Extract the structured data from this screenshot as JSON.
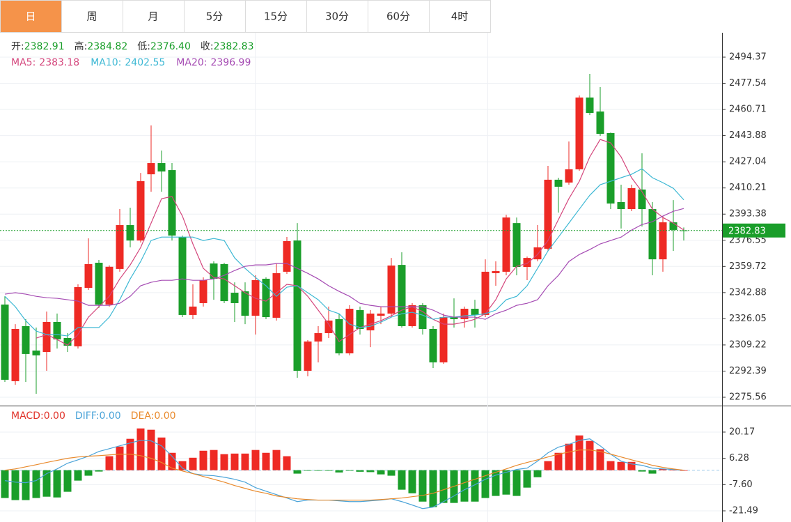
{
  "tabs": {
    "items": [
      "日",
      "周",
      "月",
      "5分",
      "15分",
      "30分",
      "60分",
      "4时"
    ],
    "active": 0
  },
  "readout": [
    {
      "label": "开:",
      "value": "2382.91"
    },
    {
      "label": "高:",
      "value": "2384.82"
    },
    {
      "label": "低:",
      "value": "2376.40"
    },
    {
      "label": "收:",
      "value": "2382.83"
    }
  ],
  "chart_data": [
    {
      "type": "candlestick",
      "up_color": "#ee2a24",
      "down_color": "#1a9e2a",
      "ylim": [
        2270.18,
        2510.06
      ],
      "yticks": [
        2494.37,
        2477.54,
        2460.71,
        2443.88,
        2427.04,
        2410.21,
        2393.38,
        2376.55,
        2359.72,
        2342.88,
        2326.05,
        2309.22,
        2292.39,
        2275.56
      ],
      "grid": true,
      "open": [
        2335.2,
        2285.9,
        2321.3,
        2305.6,
        2304.7,
        2324.0,
        2313.7,
        2308.3,
        2345.9,
        2362.1,
        2335.2,
        2358.1,
        2386.3,
        2376.4,
        2419.0,
        2426.2,
        2421.7,
        2378.7,
        2328.5,
        2336.1,
        2361.6,
        2361.2,
        2342.8,
        2343.7,
        2328.0,
        2351.8,
        2326.7,
        2356.3,
        2376.4,
        2292.6,
        2311.4,
        2316.8,
        2325.8,
        2303.8,
        2331.6,
        2318.6,
        2328.0,
        2329.4,
        2360.7,
        2321.3,
        2334.8,
        2319.5,
        2298.0,
        2327.1,
        2325.8,
        2332.5,
        2328.5,
        2355.4,
        2356.3,
        2387.6,
        2359.4,
        2364.3,
        2371.1,
        2415.5,
        2413.7,
        2422.2,
        2468.4,
        2459.4,
        2445.5,
        2401.1,
        2396.6,
        2409.2,
        2396.6,
        2364.3,
        2388.1,
        2382.91
      ],
      "high": [
        2340.6,
        2322.6,
        2325.8,
        2320.4,
        2330.7,
        2329.4,
        2316.8,
        2348.2,
        2377.8,
        2363.9,
        2360.4,
        2396.6,
        2397.5,
        2419.9,
        2450.4,
        2434.3,
        2426.2,
        2379.6,
        2348.2,
        2352.7,
        2363.0,
        2362.1,
        2349.5,
        2349.5,
        2354.0,
        2352.7,
        2361.6,
        2378.7,
        2387.6,
        2312.3,
        2321.3,
        2333.9,
        2329.4,
        2334.8,
        2333.9,
        2331.6,
        2333.9,
        2365.2,
        2368.8,
        2336.1,
        2336.1,
        2321.3,
        2329.4,
        2339.2,
        2333.9,
        2338.3,
        2364.3,
        2363.0,
        2393.0,
        2391.2,
        2366.1,
        2386.3,
        2424.4,
        2416.8,
        2440.1,
        2469.7,
        2483.6,
        2475.1,
        2445.9,
        2412.3,
        2412.3,
        2432.5,
        2401.1,
        2392.1,
        2402.4,
        2384.82
      ],
      "low": [
        2285.4,
        2283.6,
        2285.4,
        2277.8,
        2292.6,
        2306.9,
        2304.7,
        2306.9,
        2344.6,
        2333.0,
        2333.9,
        2356.3,
        2372.0,
        2375.1,
        2407.8,
        2407.8,
        2376.4,
        2327.1,
        2325.8,
        2333.9,
        2338.3,
        2336.1,
        2324.0,
        2322.6,
        2315.9,
        2325.8,
        2324.9,
        2354.9,
        2288.1,
        2289.0,
        2298.0,
        2313.7,
        2302.5,
        2302.5,
        2315.9,
        2307.8,
        2322.6,
        2327.1,
        2320.4,
        2320.4,
        2315.9,
        2294.4,
        2297.1,
        2320.4,
        2320.4,
        2320.4,
        2327.1,
        2347.3,
        2354.0,
        2354.0,
        2350.9,
        2363.0,
        2369.7,
        2394.4,
        2412.3,
        2421.3,
        2457.1,
        2443.7,
        2396.6,
        2384.1,
        2395.3,
        2385.4,
        2354.0,
        2356.3,
        2369.7,
        2376.4
      ],
      "close": [
        2286.8,
        2319.5,
        2303.4,
        2302.5,
        2324.0,
        2312.8,
        2308.7,
        2346.4,
        2361.2,
        2335.2,
        2359.5,
        2386.3,
        2376.4,
        2414.6,
        2426.2,
        2420.8,
        2379.6,
        2328.5,
        2333.9,
        2350.9,
        2351.8,
        2337.4,
        2336.1,
        2328.0,
        2350.9,
        2327.1,
        2355.4,
        2376.0,
        2292.6,
        2311.4,
        2316.8,
        2324.9,
        2303.8,
        2332.5,
        2319.5,
        2329.4,
        2329.4,
        2360.3,
        2321.3,
        2334.8,
        2319.5,
        2298.0,
        2327.1,
        2325.8,
        2332.5,
        2328.5,
        2356.3,
        2356.7,
        2391.2,
        2359.4,
        2365.2,
        2372.0,
        2415.5,
        2411.0,
        2422.2,
        2468.4,
        2458.5,
        2445.0,
        2400.2,
        2396.6,
        2410.1,
        2396.6,
        2364.3,
        2388.1,
        2383.2,
        2382.83
      ],
      "series": [
        {
          "name": "MA5:",
          "color": "#d4467c",
          "values": [
            null,
            null,
            null,
            2313.6,
            2315.9,
            2312.7,
            2309.1,
            2315.9,
            2327.1,
            2333.8,
            2340.5,
            2351.7,
            2360.7,
            2371.9,
            2387.6,
            2403.3,
            2404.7,
            2392.1,
            2374.2,
            2358.5,
            2352.6,
            2351.7,
            2347.3,
            2342.8,
            2339.2,
            2337.4,
            2342.8,
            2348.2,
            2347.3,
            2340.5,
            2331.6,
            2322.6,
            2311.4,
            2315.9,
            2320.4,
            2322.6,
            2324.8,
            2328.0,
            2331.6,
            2333.8,
            2330.7,
            2325.7,
            2322.6,
            2322.6,
            2323.9,
            2325.7,
            2329.3,
            2338.3,
            2351.7,
            2359.8,
            2361.6,
            2367.4,
            2376.4,
            2389.9,
            2403.3,
            2414.5,
            2430.2,
            2441.4,
            2439.2,
            2430.2,
            2416.8,
            2407.8,
            2396.6,
            2391.2,
            2387.6,
            2383.18
          ]
        },
        {
          "name": "MA10:",
          "color": "#3db8d4",
          "values": [
            2340.5,
            2333.8,
            2324.8,
            2318.1,
            2315.9,
            2315.9,
            2315.0,
            2320.4,
            2320.4,
            2320.4,
            2327.1,
            2338.3,
            2351.7,
            2362.9,
            2376.4,
            2378.6,
            2378.6,
            2378.6,
            2378.6,
            2376.4,
            2377.7,
            2376.4,
            2365.2,
            2358.5,
            2352.6,
            2347.3,
            2340.5,
            2346.4,
            2347.3,
            2342.8,
            2338.3,
            2331.6,
            2329.3,
            2322.6,
            2320.4,
            2321.2,
            2323.9,
            2327.1,
            2329.3,
            2330.2,
            2328.4,
            2325.7,
            2327.1,
            2327.1,
            2328.0,
            2328.4,
            2329.3,
            2331.6,
            2338.3,
            2340.5,
            2347.3,
            2358.5,
            2369.7,
            2378.6,
            2387.6,
            2396.6,
            2405.5,
            2412.3,
            2414.5,
            2416.8,
            2419.0,
            2422.6,
            2416.8,
            2413.6,
            2410.0,
            2402.55
          ]
        },
        {
          "name": "MA20:",
          "color": "#a54bb3",
          "values": [
            2341.9,
            2342.8,
            2341.9,
            2340.5,
            2339.6,
            2339.2,
            2338.3,
            2337.4,
            2334.7,
            2334.7,
            2334.7,
            2336.0,
            2340.5,
            2347.3,
            2349.5,
            2350.8,
            2350.8,
            2351.7,
            2350.8,
            2350.8,
            2351.7,
            2354.0,
            2357.1,
            2359.8,
            2360.7,
            2360.7,
            2361.6,
            2361.6,
            2358.5,
            2355.3,
            2351.7,
            2347.3,
            2343.7,
            2340.5,
            2336.0,
            2334.7,
            2333.8,
            2333.8,
            2333.8,
            2333.8,
            2333.8,
            2331.6,
            2328.4,
            2327.1,
            2327.1,
            2327.1,
            2325.7,
            2329.3,
            2331.6,
            2334.7,
            2336.0,
            2338.3,
            2347.3,
            2354.0,
            2362.9,
            2367.4,
            2370.6,
            2374.2,
            2376.4,
            2378.6,
            2383.1,
            2386.7,
            2388.5,
            2392.1,
            2395.2,
            2396.99
          ]
        }
      ]
    },
    {
      "type": "macd",
      "up_color": "#ee2a24",
      "down_color": "#1a9e2a",
      "ylim": [
        -25.91,
        33.43
      ],
      "yticks": [
        20.17,
        6.28,
        {
          "value": -7.6,
          "label": "-7.60"
        },
        -21.49
      ],
      "grid": true,
      "series": [
        {
          "name": "MACD:",
          "label": "0.00",
          "color": "#e0332a",
          "kind": "bar",
          "values": [
            -14.7,
            -15.8,
            -15.8,
            -14.7,
            -14.0,
            -14.4,
            -11.4,
            -5.5,
            -2.9,
            -0.7,
            7.4,
            12.5,
            16.6,
            22.1,
            21.4,
            17.3,
            9.2,
            4.8,
            6.6,
            10.3,
            10.7,
            8.5,
            8.8,
            8.8,
            10.7,
            9.2,
            10.7,
            7.4,
            -1.8,
            -0.2,
            -0.2,
            -0.3,
            -1.2,
            -0.3,
            -0.8,
            -1.0,
            -2.2,
            -2.9,
            -10.3,
            -12.2,
            -16.6,
            -19.5,
            -17.3,
            -17.3,
            -16.6,
            -16.6,
            -14.7,
            -13.6,
            -12.9,
            -13.6,
            -9.2,
            -3.7,
            4.8,
            9.2,
            14.0,
            18.4,
            15.5,
            11.1,
            4.8,
            4.4,
            4.4,
            -0.7,
            -1.8,
            0.7,
            0.2,
            0
          ]
        },
        {
          "name": "DIFF:",
          "label": "0.00",
          "color": "#4aa3d8",
          "kind": "line",
          "values": [
            -5.5,
            -6.3,
            -6.6,
            -5.5,
            -1.8,
            0.7,
            3.7,
            5.5,
            7.4,
            9.9,
            11.4,
            12.9,
            14.4,
            15.8,
            15.5,
            12.9,
            7.4,
            1.1,
            -1.8,
            -2.6,
            -2.9,
            -3.7,
            -4.8,
            -6.3,
            -9.2,
            -11.1,
            -12.9,
            -14.7,
            -16.6,
            -15.8,
            -15.8,
            -15.8,
            -16.2,
            -16.6,
            -16.6,
            -16.2,
            -15.8,
            -15.1,
            -16.6,
            -18.4,
            -20.3,
            -19.5,
            -16.6,
            -13.6,
            -10.3,
            -7.7,
            -4.8,
            -2.6,
            -1.1,
            0.4,
            1.1,
            4.8,
            9.2,
            12.2,
            13.6,
            15.8,
            16.6,
            12.9,
            8.5,
            4.8,
            3.3,
            2.6,
            1.1,
            0.7,
            0.4,
            0
          ]
        },
        {
          "name": "DEA:",
          "label": "0.00",
          "color": "#e98a2c",
          "kind": "line",
          "values": [
            0,
            0.7,
            1.8,
            2.9,
            4.1,
            5.2,
            6.3,
            7.0,
            7.4,
            7.7,
            8.1,
            8.5,
            8.5,
            7.7,
            6.3,
            4.1,
            1.1,
            -0.4,
            -1.8,
            -3.3,
            -4.8,
            -6.3,
            -8.1,
            -9.6,
            -11.1,
            -12.2,
            -13.6,
            -14.4,
            -15.1,
            -15.5,
            -15.8,
            -15.8,
            -15.8,
            -15.8,
            -15.8,
            -15.8,
            -15.5,
            -15.1,
            -14.7,
            -14.0,
            -13.3,
            -12.2,
            -10.3,
            -8.5,
            -6.6,
            -4.8,
            -2.9,
            -1.1,
            0.7,
            2.6,
            4.1,
            5.5,
            7.0,
            8.5,
            9.6,
            10.7,
            10.7,
            9.9,
            8.5,
            7.0,
            5.5,
            4.1,
            2.6,
            1.5,
            0.7,
            0
          ]
        }
      ]
    }
  ]
}
